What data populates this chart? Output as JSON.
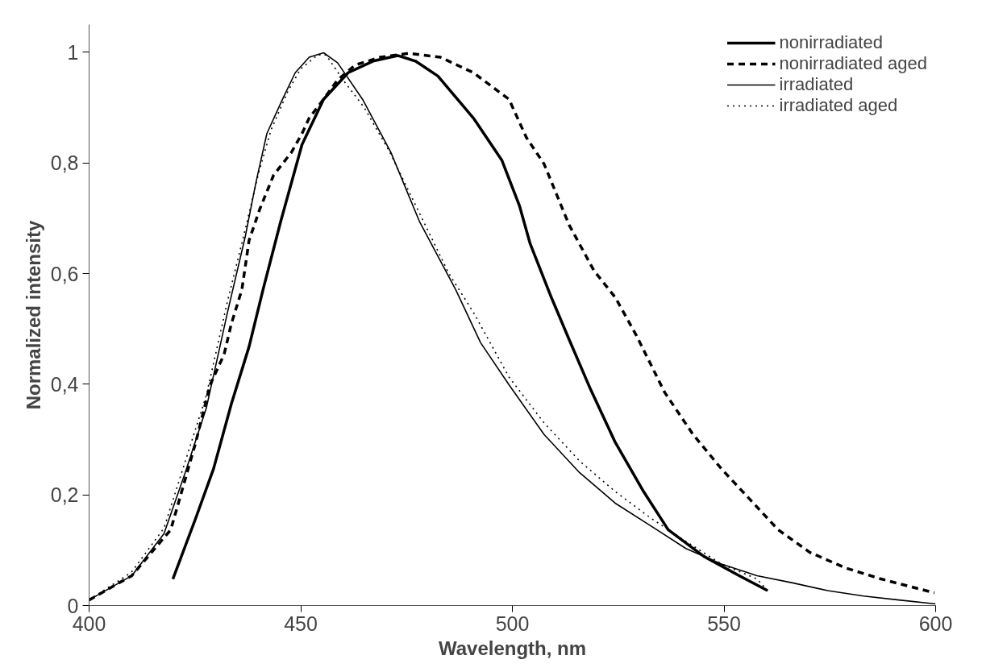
{
  "chart_data": {
    "type": "line",
    "xlabel": "Wavelength, nm",
    "ylabel": "Normalized intensity",
    "xlim": [
      400,
      600
    ],
    "ylim": [
      0,
      1.05
    ],
    "xticks": [
      400,
      450,
      500,
      550,
      600
    ],
    "yticks": [
      0,
      {
        "value": 0.2,
        "label": "0,2"
      },
      {
        "value": 0.4,
        "label": "0,4"
      },
      {
        "value": 0.6,
        "label": "0,6"
      },
      {
        "value": 0.8,
        "label": "0,8"
      },
      1
    ],
    "grid": false,
    "legend": "top right",
    "marker": "none",
    "series": [
      {
        "name": "nonirradiated",
        "color": "#000000",
        "line_style": "solid",
        "x": [
          419.8,
          425.2,
          429.4,
          433.6,
          437.8,
          441.1,
          445.3,
          450.3,
          455.4,
          461.2,
          467.1,
          472.9,
          477.1,
          482.4,
          490.8,
          497.5,
          501.7,
          504.2,
          509.2,
          513.4,
          518.4,
          524.3,
          531,
          536.8,
          545.2,
          553.6,
          560.3
        ],
        "values": [
          0.048,
          0.158,
          0.247,
          0.364,
          0.468,
          0.571,
          0.695,
          0.833,
          0.915,
          0.963,
          0.984,
          0.994,
          0.984,
          0.957,
          0.881,
          0.805,
          0.722,
          0.654,
          0.557,
          0.481,
          0.392,
          0.295,
          0.206,
          0.137,
          0.089,
          0.054,
          0.027
        ]
      },
      {
        "name": "nonirradiated aged",
        "color": "#000000",
        "line_style": "dashed",
        "x": [
          400,
          410.1,
          419.3,
          425.2,
          428.6,
          431.9,
          433.6,
          436.1,
          437.8,
          440.3,
          443.6,
          447.8,
          450.3,
          452,
          455.4,
          458.7,
          462.9,
          468.8,
          475.5,
          483,
          490.8,
          499.2,
          503.3,
          507.5,
          513.4,
          519.3,
          524.3,
          529.3,
          536,
          542.7,
          549.4,
          556.1,
          562.8,
          570.3,
          578.7,
          587.1,
          599.7
        ],
        "values": [
          0.01,
          0.054,
          0.137,
          0.295,
          0.399,
          0.454,
          0.509,
          0.571,
          0.66,
          0.716,
          0.778,
          0.819,
          0.853,
          0.881,
          0.915,
          0.95,
          0.977,
          0.991,
          0.998,
          0.991,
          0.963,
          0.915,
          0.846,
          0.798,
          0.688,
          0.605,
          0.557,
          0.488,
          0.385,
          0.309,
          0.247,
          0.192,
          0.137,
          0.096,
          0.068,
          0.048,
          0.023
        ]
      },
      {
        "name": "irradiated",
        "color": "#000000",
        "line_style": "solid",
        "x": [
          400,
          410.1,
          417.7,
          422.7,
          427.7,
          432.7,
          436.9,
          439.4,
          442,
          445.7,
          448.7,
          452,
          455.4,
          458.7,
          464.6,
          471.3,
          478,
          486.6,
          492.5,
          499.2,
          507.5,
          515.9,
          524.3,
          532.7,
          541,
          549.4,
          557.8,
          566.2,
          574.5,
          583,
          591.3,
          600
        ],
        "values": [
          0.01,
          0.054,
          0.13,
          0.24,
          0.357,
          0.53,
          0.667,
          0.764,
          0.853,
          0.915,
          0.963,
          0.991,
          0.999,
          0.981,
          0.915,
          0.819,
          0.695,
          0.571,
          0.475,
          0.399,
          0.309,
          0.24,
          0.185,
          0.144,
          0.103,
          0.075,
          0.054,
          0.041,
          0.027,
          0.017,
          0.01,
          0.003
        ]
      },
      {
        "name": "irradiated aged",
        "color": "#000000",
        "line_style": "dotted",
        "x": [
          400,
          410,
          417.7,
          422.7,
          427.7,
          432.7,
          436.9,
          440,
          443,
          447,
          450,
          454,
          456,
          460,
          465,
          471,
          478,
          485,
          490.8,
          499.2,
          507.5,
          515.9,
          524.3,
          532.7,
          541,
          549.4,
          557.8,
          560.3
        ],
        "values": [
          0.01,
          0.06,
          0.14,
          0.26,
          0.38,
          0.55,
          0.68,
          0.78,
          0.86,
          0.93,
          0.97,
          0.995,
          0.995,
          0.95,
          0.9,
          0.82,
          0.71,
          0.6,
          0.53,
          0.413,
          0.33,
          0.261,
          0.206,
          0.158,
          0.116,
          0.075,
          0.048,
          0.027
        ]
      }
    ]
  }
}
